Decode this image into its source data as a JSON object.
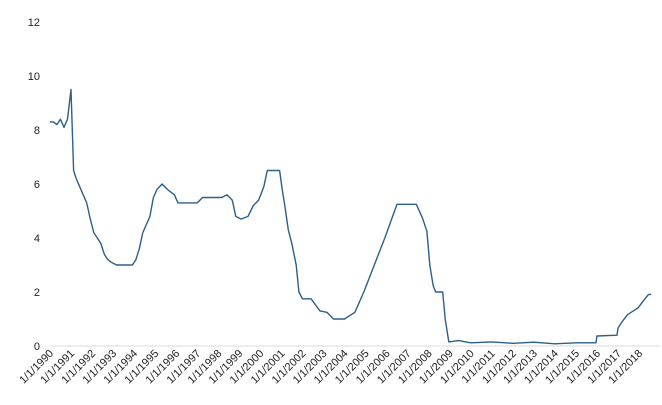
{
  "chart_data": {
    "type": "line",
    "title": "",
    "xlabel": "",
    "ylabel": "",
    "ylim": [
      0,
      12
    ],
    "yticks": [
      0,
      2,
      4,
      6,
      8,
      10,
      12
    ],
    "xlim": [
      "1990-01-01",
      "2018-12-31"
    ],
    "x_tick_labels": [
      "1/1/1990",
      "1/1/1991",
      "1/1/1992",
      "1/1/1993",
      "1/1/1994",
      "1/1/1995",
      "1/1/1996",
      "1/1/1997",
      "1/1/1998",
      "1/1/1999",
      "1/1/2000",
      "1/1/2001",
      "1/1/2002",
      "1/1/2003",
      "1/1/2004",
      "1/1/2005",
      "1/1/2006",
      "1/1/2007",
      "1/1/2008",
      "1/1/2009",
      "1/1/2010",
      "1/1/2011",
      "1/1/2012",
      "1/1/2013",
      "1/1/2014",
      "1/1/2015",
      "1/1/2016",
      "1/1/2017",
      "1/1/2018"
    ],
    "grid": false,
    "legend": "none",
    "series": [
      {
        "color": "#2e5e8a",
        "points": [
          [
            "1990-01-01",
            8.3
          ],
          [
            "1990-03-01",
            8.3
          ],
          [
            "1990-05-01",
            8.2
          ],
          [
            "1990-07-01",
            8.4
          ],
          [
            "1990-09-01",
            8.1
          ],
          [
            "1990-11-01",
            8.4
          ],
          [
            "1991-01-01",
            9.5
          ],
          [
            "1991-02-15",
            6.5
          ],
          [
            "1991-04-01",
            6.2
          ],
          [
            "1991-06-01",
            5.9
          ],
          [
            "1991-08-01",
            5.6
          ],
          [
            "1991-10-01",
            5.3
          ],
          [
            "1991-12-01",
            4.7
          ],
          [
            "1992-02-01",
            4.2
          ],
          [
            "1992-04-01",
            4.0
          ],
          [
            "1992-06-01",
            3.8
          ],
          [
            "1992-08-01",
            3.4
          ],
          [
            "1992-10-01",
            3.2
          ],
          [
            "1992-12-01",
            3.1
          ],
          [
            "1993-03-01",
            3.0
          ],
          [
            "1993-06-01",
            3.0
          ],
          [
            "1993-09-01",
            3.0
          ],
          [
            "1993-12-01",
            3.0
          ],
          [
            "1994-02-01",
            3.2
          ],
          [
            "1994-04-01",
            3.6
          ],
          [
            "1994-06-01",
            4.2
          ],
          [
            "1994-08-01",
            4.5
          ],
          [
            "1994-10-01",
            4.8
          ],
          [
            "1994-12-01",
            5.5
          ],
          [
            "1995-02-01",
            5.8
          ],
          [
            "1995-05-01",
            6.0
          ],
          [
            "1995-08-01",
            5.8
          ],
          [
            "1995-12-01",
            5.6
          ],
          [
            "1996-02-01",
            5.3
          ],
          [
            "1996-06-01",
            5.3
          ],
          [
            "1996-10-01",
            5.3
          ],
          [
            "1997-01-01",
            5.3
          ],
          [
            "1997-04-01",
            5.5
          ],
          [
            "1997-08-01",
            5.5
          ],
          [
            "1997-12-01",
            5.5
          ],
          [
            "1998-03-01",
            5.5
          ],
          [
            "1998-06-01",
            5.6
          ],
          [
            "1998-09-01",
            5.4
          ],
          [
            "1998-11-01",
            4.8
          ],
          [
            "1999-02-01",
            4.7
          ],
          [
            "1999-06-01",
            4.8
          ],
          [
            "1999-09-01",
            5.2
          ],
          [
            "1999-12-01",
            5.4
          ],
          [
            "2000-03-01",
            5.9
          ],
          [
            "2000-05-01",
            6.5
          ],
          [
            "2000-08-01",
            6.5
          ],
          [
            "2000-12-01",
            6.5
          ],
          [
            "2001-01-15",
            5.8
          ],
          [
            "2001-03-01",
            5.2
          ],
          [
            "2001-05-01",
            4.3
          ],
          [
            "2001-07-01",
            3.8
          ],
          [
            "2001-09-15",
            3.0
          ],
          [
            "2001-11-01",
            2.0
          ],
          [
            "2002-01-01",
            1.75
          ],
          [
            "2002-06-01",
            1.75
          ],
          [
            "2002-11-01",
            1.3
          ],
          [
            "2003-03-01",
            1.25
          ],
          [
            "2003-06-25",
            1.0
          ],
          [
            "2004-01-01",
            1.0
          ],
          [
            "2004-06-30",
            1.25
          ],
          [
            "2004-12-01",
            2.0
          ],
          [
            "2005-06-01",
            3.0
          ],
          [
            "2005-12-01",
            4.0
          ],
          [
            "2006-06-30",
            5.25
          ],
          [
            "2006-12-01",
            5.25
          ],
          [
            "2007-06-01",
            5.25
          ],
          [
            "2007-09-15",
            4.75
          ],
          [
            "2007-12-01",
            4.25
          ],
          [
            "2008-01-22",
            3.0
          ],
          [
            "2008-03-18",
            2.25
          ],
          [
            "2008-05-01",
            2.0
          ],
          [
            "2008-09-01",
            2.0
          ],
          [
            "2008-10-15",
            1.0
          ],
          [
            "2008-12-16",
            0.15
          ],
          [
            "2009-06-01",
            0.2
          ],
          [
            "2010-01-01",
            0.12
          ],
          [
            "2011-01-01",
            0.15
          ],
          [
            "2012-01-01",
            0.1
          ],
          [
            "2013-01-01",
            0.14
          ],
          [
            "2014-01-01",
            0.08
          ],
          [
            "2015-01-01",
            0.12
          ],
          [
            "2015-12-16",
            0.12
          ],
          [
            "2016-01-01",
            0.37
          ],
          [
            "2016-12-14",
            0.4
          ],
          [
            "2016-12-31",
            0.66
          ],
          [
            "2017-03-16",
            0.91
          ],
          [
            "2017-06-15",
            1.16
          ],
          [
            "2017-12-14",
            1.41
          ],
          [
            "2018-03-22",
            1.68
          ],
          [
            "2018-06-14",
            1.91
          ],
          [
            "2018-08-01",
            1.91
          ]
        ]
      }
    ]
  }
}
